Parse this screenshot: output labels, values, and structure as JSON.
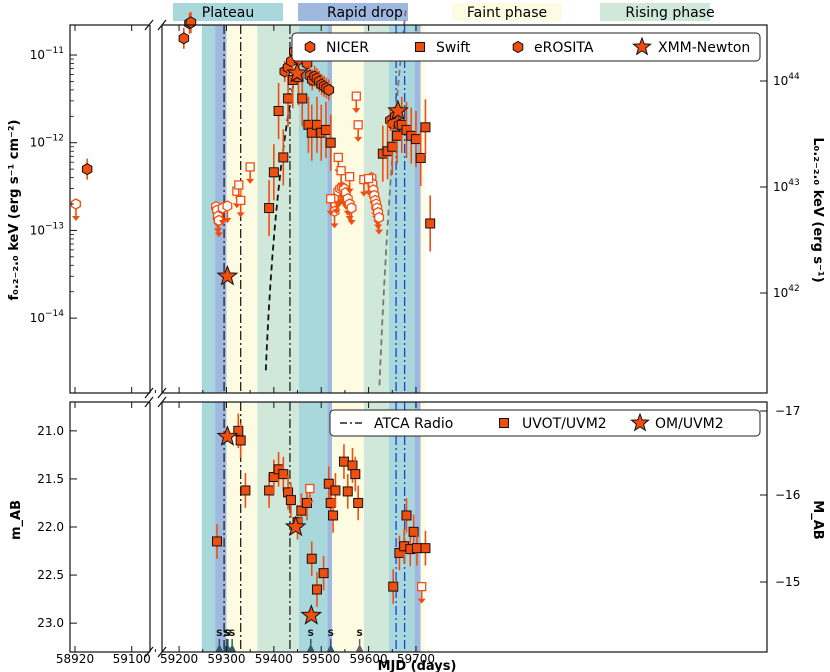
{
  "chart_data": [
    {
      "type": "scatter",
      "panel": "top",
      "xlabel": "MJD (days)",
      "ylabel_left": "f_{0.2-2.0 keV} (erg s^-1 cm^-2)",
      "ylabel_right": "L_{0.2-2.0 keV} (erg s^-1)",
      "yscale": "log",
      "ylim": [
        1.4e-15,
        2.2e-11
      ],
      "y_ticks_left": [
        "10^-14",
        "10^-13",
        "10^-12",
        "10^-11"
      ],
      "y_ticks_right": [
        "10^42",
        "10^43",
        "10^44"
      ],
      "x_ticks": [
        "58920",
        "59100",
        "59200",
        "59300",
        "59400",
        "59500",
        "59600",
        "59700"
      ],
      "x_breaks_note": "axis broken between 58920 and 59100",
      "phase_legend": [
        "Plateau",
        "Rapid drop",
        "Faint phase",
        "Rising phase"
      ],
      "phase_colors": [
        "#a9d8dc",
        "#9fb8e0",
        "#fdfce3",
        "#cfe8da"
      ],
      "phases": [
        {
          "name": "Plateau",
          "start": 59248,
          "end": 59276
        },
        {
          "name": "Rapid drop",
          "start": 59276,
          "end": 59300
        },
        {
          "name": "Faint phase",
          "start": 59300,
          "end": 59365
        },
        {
          "name": "Rising phase",
          "start": 59365,
          "end": 59453
        },
        {
          "name": "Plateau",
          "start": 59453,
          "end": 59513
        },
        {
          "name": "Rapid drop",
          "start": 59513,
          "end": 59523
        },
        {
          "name": "Faint phase",
          "start": 59523,
          "end": 59590
        },
        {
          "name": "Rising phase",
          "start": 59590,
          "end": 59643
        },
        {
          "name": "Plateau",
          "start": 59643,
          "end": 59697
        },
        {
          "name": "Rapid drop",
          "start": 59697,
          "end": 59710
        },
        {
          "name": "Faint phase",
          "start": 59710,
          "end": 59720
        }
      ],
      "legend": [
        "NICER",
        "Swift",
        "eROSITA",
        "XMM-Newton"
      ],
      "series": [
        {
          "name": "NICER",
          "marker": "hexagon",
          "detections": [
            [
              59210,
              1.55e-11
            ],
            [
              59222,
              2.3e-11
            ],
            [
              59225,
              2.35e-11
            ],
            [
              59423,
              6.5e-12
            ],
            [
              59430,
              7.2e-12
            ],
            [
              59437,
              8.5e-12
            ],
            [
              59443,
              1.1e-11
            ],
            [
              59449,
              1.2e-11
            ],
            [
              59453,
              8.9e-12
            ],
            [
              59467,
              1.02e-11
            ],
            [
              59470,
              8e-12
            ],
            [
              59476,
              5.8e-12
            ],
            [
              59481,
              5.2e-12
            ],
            [
              59486,
              5.7e-12
            ],
            [
              59491,
              5.4e-12
            ],
            [
              59496,
              5e-12
            ],
            [
              59501,
              4.6e-12
            ],
            [
              59506,
              4.4e-12
            ],
            [
              59511,
              4.2e-12
            ],
            [
              59516,
              4e-12
            ],
            [
              59646,
              1.8e-12
            ],
            [
              59651,
              1.65e-12
            ],
            [
              59656,
              2e-12
            ],
            [
              59660,
              1.7e-12
            ],
            [
              59665,
              1.6e-12
            ]
          ],
          "upper_limits": [
            [
              59278,
              1.87e-13
            ],
            [
              59280,
              1.7e-13
            ],
            [
              59282,
              1.45e-13
            ],
            [
              59284,
              1.3e-13
            ],
            [
              59292,
              1.8e-13
            ],
            [
              59302,
              1.9e-13
            ],
            [
              59528,
              1.65e-13
            ],
            [
              59532,
              2.4e-13
            ],
            [
              59536,
              2.8e-13
            ],
            [
              59540,
              3e-13
            ],
            [
              59544,
              3.1e-13
            ],
            [
              59548,
              3e-13
            ],
            [
              59552,
              2.7e-13
            ],
            [
              59556,
              2.3e-13
            ],
            [
              59560,
              2e-13
            ],
            [
              59564,
              1.8e-13
            ],
            [
              59606,
              4e-13
            ],
            [
              59608,
              3.4e-13
            ],
            [
              59610,
              2.9e-13
            ],
            [
              59612,
              2.5e-13
            ],
            [
              59614,
              2.2e-13
            ],
            [
              59616,
              2e-13
            ],
            [
              59618,
              1.8e-13
            ],
            [
              59620,
              1.6e-13
            ],
            [
              59622,
              1.4e-13
            ]
          ]
        },
        {
          "name": "Swift",
          "marker": "square",
          "detections": [
            [
              59390,
              1.8e-13
            ],
            [
              59400,
              4.6e-13
            ],
            [
              59410,
              2.3e-12
            ],
            [
              59420,
              6.8e-13
            ],
            [
              59430,
              3.2e-12
            ],
            [
              59440,
              5.2e-12
            ],
            [
              59452,
              5.6e-12
            ],
            [
              59460,
              3.2e-12
            ],
            [
              59473,
              1.6e-12
            ],
            [
              59480,
              1.3e-12
            ],
            [
              59491,
              1.6e-12
            ],
            [
              59500,
              1.3e-12
            ],
            [
              59510,
              1.4e-12
            ],
            [
              59520,
              1e-12
            ],
            [
              59630,
              7.5e-13
            ],
            [
              59640,
              8e-13
            ],
            [
              59650,
              9e-13
            ],
            [
              59660,
              1.2e-12
            ],
            [
              59670,
              1.6e-12
            ],
            [
              59680,
              1.4e-12
            ],
            [
              59690,
              1.2e-12
            ],
            [
              59700,
              1.1e-12
            ],
            [
              59710,
              6.7e-13
            ],
            [
              59720,
              1.5e-12
            ],
            [
              59730,
              1.2e-13
            ]
          ],
          "upper_limits": [
            [
              59322,
              2.8e-13
            ],
            [
              59326,
              3.3e-13
            ],
            [
              59330,
              2.2e-13
            ],
            [
              59350,
              5.3e-13
            ],
            [
              59520,
              2.3e-13
            ],
            [
              59536,
              6.8e-13
            ],
            [
              59542,
              4.8e-13
            ],
            [
              59560,
              4.1e-13
            ],
            [
              59574,
              3.4e-12
            ],
            [
              59578,
              1.6e-12
            ],
            [
              59590,
              3.8e-13
            ],
            [
              59600,
              3.9e-13
            ]
          ]
        },
        {
          "name": "eROSITA",
          "marker": "hexagon",
          "detections": [
            [
              59006,
              5e-13
            ]
          ],
          "upper_limits": [
            [
              58922,
              2e-13
            ]
          ]
        },
        {
          "name": "XMM-Newton",
          "marker": "star",
          "detections": [
            [
              59302,
              3e-14
            ],
            [
              59449,
              6.2e-12
            ],
            [
              59662,
              2.3e-12
            ]
          ],
          "upper_limits": []
        }
      ],
      "model_curves": [
        {
          "style": "black dashed",
          "x_start": 59365,
          "x_end": 59448
        },
        {
          "style": "grey dashed",
          "x_start": 59590,
          "x_end": 59680
        }
      ]
    },
    {
      "type": "scatter",
      "panel": "bottom",
      "xlabel": "MJD (days)",
      "ylabel_left": "m_AB",
      "ylabel_right": "M_AB",
      "ylim": [
        23.3,
        20.7
      ],
      "y_ticks_left": [
        "21.0",
        "21.5",
        "22.0",
        "22.5",
        "23.0"
      ],
      "y_ticks_right": [
        "-17",
        "-16",
        "-15"
      ],
      "legend": [
        "ATCA Radio",
        "UVOT/UVM2",
        "OM/UVM2"
      ],
      "radio_epochs": [
        59295,
        59330,
        59434,
        59658,
        59676
      ],
      "series": [
        {
          "name": "UVOT/UVM2",
          "marker": "square",
          "detections": [
            [
              59280,
              22.15
            ],
            [
              59325,
              21.0
            ],
            [
              59330,
              21.1
            ],
            [
              59340,
              21.62
            ],
            [
              59390,
              21.62
            ],
            [
              59400,
              21.48
            ],
            [
              59410,
              21.4
            ],
            [
              59420,
              21.45
            ],
            [
              59430,
              21.64
            ],
            [
              59436,
              21.72
            ],
            [
              59450,
              21.95
            ],
            [
              59458,
              21.83
            ],
            [
              59470,
              21.75
            ],
            [
              59480,
              22.33
            ],
            [
              59491,
              22.65
            ],
            [
              59505,
              22.48
            ],
            [
              59516,
              21.55
            ],
            [
              59520,
              21.75
            ],
            [
              59525,
              21.88
            ],
            [
              59530,
              21.62
            ],
            [
              59548,
              21.32
            ],
            [
              59556,
              21.63
            ],
            [
              59566,
              21.36
            ],
            [
              59572,
              21.45
            ],
            [
              59578,
              21.75
            ],
            [
              59652,
              22.62
            ],
            [
              59665,
              22.27
            ],
            [
              59675,
              22.2
            ],
            [
              59680,
              21.88
            ],
            [
              59688,
              22.23
            ],
            [
              59695,
              22.05
            ],
            [
              59702,
              22.22
            ],
            [
              59720,
              22.22
            ]
          ],
          "upper_limits": [
            [
              59476,
              21.6
            ],
            [
              59712,
              22.62
            ]
          ]
        },
        {
          "name": "OM/UVM2",
          "marker": "star",
          "detections": [
            [
              59302,
              21.06
            ],
            [
              59446,
              22.0
            ],
            [
              59479,
              22.92
            ]
          ]
        }
      ],
      "s_markers": {
        "label": "S",
        "epochs": [
          59285,
          59300,
          59302,
          59303,
          59312,
          59478,
          59520,
          59581
        ]
      }
    }
  ]
}
